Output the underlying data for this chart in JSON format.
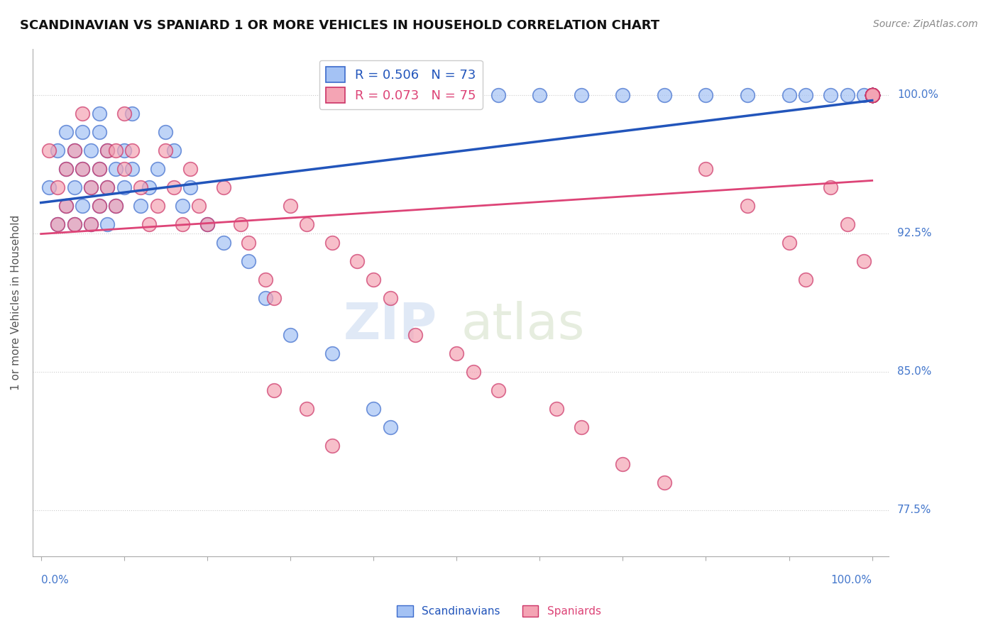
{
  "title": "SCANDINAVIAN VS SPANIARD 1 OR MORE VEHICLES IN HOUSEHOLD CORRELATION CHART",
  "source": "Source: ZipAtlas.com",
  "ylabel": "1 or more Vehicles in Household",
  "blue_R": 0.506,
  "blue_N": 73,
  "pink_R": 0.073,
  "pink_N": 75,
  "blue_face_color": "#a4c2f4",
  "blue_edge_color": "#3c6bcc",
  "pink_face_color": "#f4a4b4",
  "pink_edge_color": "#cc3366",
  "blue_line_color": "#2255bb",
  "pink_line_color": "#dd4477",
  "label_color": "#4477cc",
  "title_color": "#111111",
  "source_color": "#888888",
  "grid_color": "#cccccc",
  "ytick_labels": [
    "77.5%",
    "85.0%",
    "92.5%",
    "100.0%"
  ],
  "ytick_vals": [
    77.5,
    85.0,
    92.5,
    100.0
  ],
  "blue_x": [
    1,
    2,
    2,
    3,
    3,
    3,
    4,
    4,
    4,
    5,
    5,
    5,
    6,
    6,
    6,
    7,
    7,
    7,
    7,
    8,
    8,
    8,
    9,
    9,
    10,
    10,
    11,
    11,
    12,
    13,
    14,
    15,
    16,
    17,
    18,
    20,
    22,
    25,
    27,
    30,
    35,
    40,
    42,
    50,
    55,
    60,
    65,
    70,
    75,
    80,
    85,
    90,
    92,
    95,
    97,
    99,
    100,
    100,
    100,
    100,
    100,
    100,
    100,
    100,
    100,
    100,
    100,
    100,
    100,
    100,
    100,
    100,
    100
  ],
  "blue_y": [
    95,
    93,
    97,
    96,
    94,
    98,
    95,
    97,
    93,
    96,
    98,
    94,
    95,
    97,
    93,
    96,
    98,
    94,
    99,
    95,
    97,
    93,
    96,
    94,
    95,
    97,
    96,
    99,
    94,
    95,
    96,
    98,
    97,
    94,
    95,
    93,
    92,
    91,
    89,
    87,
    86,
    83,
    82,
    100,
    100,
    100,
    100,
    100,
    100,
    100,
    100,
    100,
    100,
    100,
    100,
    100,
    100,
    100,
    100,
    100,
    100,
    100,
    100,
    100,
    100,
    100,
    100,
    100,
    100,
    100,
    100,
    100,
    100
  ],
  "pink_x": [
    1,
    2,
    2,
    3,
    3,
    4,
    4,
    5,
    5,
    6,
    6,
    7,
    7,
    8,
    8,
    9,
    9,
    10,
    10,
    11,
    12,
    13,
    14,
    15,
    16,
    17,
    18,
    19,
    20,
    22,
    24,
    25,
    27,
    28,
    30,
    32,
    35,
    38,
    40,
    42,
    45,
    50,
    52,
    55,
    28,
    32,
    35,
    62,
    65,
    70,
    75,
    80,
    85,
    90,
    92,
    95,
    97,
    99,
    100,
    100,
    100,
    100,
    100,
    100,
    100,
    100,
    100,
    100,
    100,
    100,
    100,
    100,
    100,
    100,
    100
  ],
  "pink_y": [
    97,
    95,
    93,
    96,
    94,
    97,
    93,
    96,
    99,
    95,
    93,
    96,
    94,
    95,
    97,
    94,
    97,
    96,
    99,
    97,
    95,
    93,
    94,
    97,
    95,
    93,
    96,
    94,
    93,
    95,
    93,
    92,
    90,
    89,
    94,
    93,
    92,
    91,
    90,
    89,
    87,
    86,
    85,
    84,
    84,
    83,
    81,
    83,
    82,
    80,
    79,
    96,
    94,
    92,
    90,
    95,
    93,
    91,
    100,
    100,
    100,
    100,
    100,
    100,
    100,
    100,
    100,
    100,
    100,
    100,
    100,
    100,
    100,
    100,
    100
  ]
}
